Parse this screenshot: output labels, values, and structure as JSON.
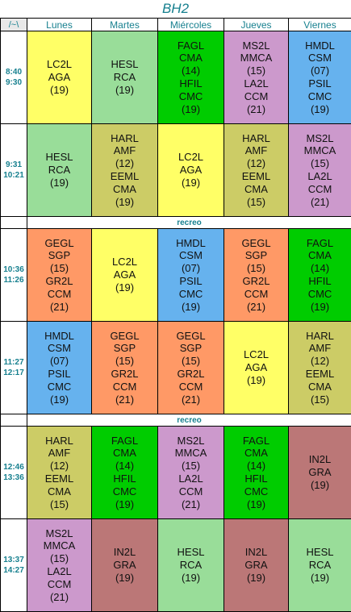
{
  "title": "BH2",
  "corner_label": "/~\\",
  "days": [
    "Lunes",
    "Martes",
    "Miércoles",
    "Jueves",
    "Viernes"
  ],
  "recess_label": "recreo",
  "periods": [
    {
      "start": "8:40",
      "end": "9:30",
      "cells": [
        {
          "lines": [
            "LC2L",
            "AGA",
            "(19)"
          ],
          "color": "yellow"
        },
        {
          "lines": [
            "HESL",
            "RCA",
            "(19)"
          ],
          "color": "lightgreen"
        },
        {
          "lines": [
            "FAGL",
            "CMA",
            "(14)",
            "HFIL",
            "CMC",
            "(19)"
          ],
          "color": "green"
        },
        {
          "lines": [
            "MS2L",
            "MMCA",
            "(15)",
            "LA2L",
            "CCM",
            "(21)"
          ],
          "color": "purple"
        },
        {
          "lines": [
            "HMDL",
            "CSM",
            "(07)",
            "PSIL",
            "CMC",
            "(19)"
          ],
          "color": "blue"
        }
      ]
    },
    {
      "start": "9:31",
      "end": "10:21",
      "cells": [
        {
          "lines": [
            "HESL",
            "RCA",
            "(19)"
          ],
          "color": "lightgreen"
        },
        {
          "lines": [
            "HARL",
            "AMF",
            "(12)",
            "EEML",
            "CMA",
            "(19)"
          ],
          "color": "olive"
        },
        {
          "lines": [
            "LC2L",
            "AGA",
            "(19)"
          ],
          "color": "yellow"
        },
        {
          "lines": [
            "HARL",
            "AMF",
            "(12)",
            "EEML",
            "CMA",
            "(15)"
          ],
          "color": "olive"
        },
        {
          "lines": [
            "MS2L",
            "MMCA",
            "(15)",
            "LA2L",
            "CCM",
            "(21)"
          ],
          "color": "purple"
        }
      ]
    },
    {
      "start": "10:36",
      "end": "11:26",
      "cells": [
        {
          "lines": [
            "GEGL",
            "SGP",
            "(15)",
            "GR2L",
            "CCM",
            "(21)"
          ],
          "color": "orange"
        },
        {
          "lines": [
            "LC2L",
            "AGA",
            "(19)"
          ],
          "color": "yellow"
        },
        {
          "lines": [
            "HMDL",
            "CSM",
            "(07)",
            "PSIL",
            "CMC",
            "(19)"
          ],
          "color": "blue"
        },
        {
          "lines": [
            "GEGL",
            "SGP",
            "(15)",
            "GR2L",
            "CCM",
            "(21)"
          ],
          "color": "orange"
        },
        {
          "lines": [
            "FAGL",
            "CMA",
            "(14)",
            "HFIL",
            "CMC",
            "(19)"
          ],
          "color": "green"
        }
      ]
    },
    {
      "start": "11:27",
      "end": "12:17",
      "cells": [
        {
          "lines": [
            "HMDL",
            "CSM",
            "(07)",
            "PSIL",
            "CMC",
            "(19)"
          ],
          "color": "blue"
        },
        {
          "lines": [
            "GEGL",
            "SGP",
            "(15)",
            "GR2L",
            "CCM",
            "(21)"
          ],
          "color": "orange"
        },
        {
          "lines": [
            "GEGL",
            "SGP",
            "(15)",
            "GR2L",
            "CCM",
            "(21)"
          ],
          "color": "orange"
        },
        {
          "lines": [
            "LC2L",
            "AGA",
            "(19)"
          ],
          "color": "yellow"
        },
        {
          "lines": [
            "HARL",
            "AMF",
            "(12)",
            "EEML",
            "CMA",
            "(15)"
          ],
          "color": "olive"
        }
      ]
    },
    {
      "start": "12:46",
      "end": "13:36",
      "cells": [
        {
          "lines": [
            "HARL",
            "AMF",
            "(12)",
            "EEML",
            "CMA",
            "(15)"
          ],
          "color": "olive"
        },
        {
          "lines": [
            "FAGL",
            "CMA",
            "(14)",
            "HFIL",
            "CMC",
            "(19)"
          ],
          "color": "green"
        },
        {
          "lines": [
            "MS2L",
            "MMCA",
            "(15)",
            "LA2L",
            "CCM",
            "(21)"
          ],
          "color": "purple"
        },
        {
          "lines": [
            "FAGL",
            "CMA",
            "(14)",
            "HFIL",
            "CMC",
            "(19)"
          ],
          "color": "green"
        },
        {
          "lines": [
            "IN2L",
            "GRA",
            "(19)"
          ],
          "color": "brown"
        }
      ]
    },
    {
      "start": "13:37",
      "end": "14:27",
      "cells": [
        {
          "lines": [
            "MS2L",
            "MMCA",
            "(15)",
            "LA2L",
            "CCM",
            "(21)"
          ],
          "color": "purple"
        },
        {
          "lines": [
            "IN2L",
            "GRA",
            "(19)"
          ],
          "color": "brown"
        },
        {
          "lines": [
            "HESL",
            "RCA",
            "(19)"
          ],
          "color": "lightgreen"
        },
        {
          "lines": [
            "IN2L",
            "GRA",
            "(19)"
          ],
          "color": "brown"
        },
        {
          "lines": [
            "HESL",
            "RCA",
            "(19)"
          ],
          "color": "lightgreen"
        }
      ]
    }
  ],
  "colors": {
    "yellow": "#ffff66",
    "lightgreen": "#99dd99",
    "green": "#00cc00",
    "purple": "#cc99cc",
    "blue": "#66b2ee",
    "olive": "#cccc66",
    "orange": "#ff9966",
    "brown": "#bb7777",
    "header_text": "#17808f"
  }
}
